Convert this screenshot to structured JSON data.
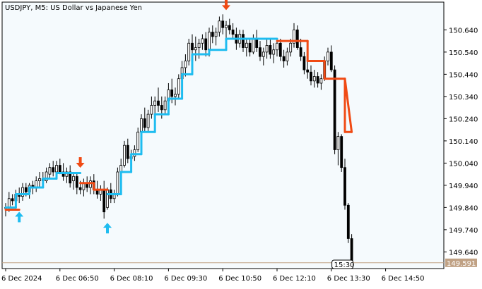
{
  "chart_data": {
    "type": "candlestick",
    "title": "USDJPY, M5:  US Dollar vs Japanese Yen",
    "y_ticks": [
      "150.640",
      "150.540",
      "150.440",
      "150.340",
      "150.240",
      "150.140",
      "150.040",
      "149.940",
      "149.840",
      "149.740",
      "149.640"
    ],
    "y_tick_values": [
      150.64,
      150.54,
      150.44,
      150.34,
      150.24,
      150.14,
      150.04,
      149.94,
      149.84,
      149.74,
      149.64
    ],
    "ylim": [
      149.565,
      150.765
    ],
    "x_ticks": [
      "6 Dec 2024",
      "6 Dec 06:50",
      "6 Dec 08:10",
      "6 Dec 09:30",
      "6 Dec 10:50",
      "6 Dec 12:10",
      "6 Dec 13:30",
      "6 Dec 14:50"
    ],
    "x_tick_bars": [
      0,
      16,
      32,
      48,
      64,
      80,
      96,
      112
    ],
    "current_price": 149.591,
    "current_price_label": "149.591",
    "current_time_label": "15:30",
    "grid": false,
    "colors": {
      "background": "#ffffff",
      "plot_background": "#f5fafd",
      "candle": "#000000",
      "trend_up": "#1ebcf0",
      "trend_down": "#f04a14",
      "price_line": "#c0a184",
      "price_label_bg": "#c0a184",
      "arrow_up": "#1ebcf0",
      "arrow_down": "#f04a14"
    },
    "candles": [
      [
        149.84,
        149.86,
        149.8,
        149.84
      ],
      [
        149.84,
        149.91,
        149.82,
        149.88
      ],
      [
        149.88,
        149.9,
        149.85,
        149.87
      ],
      [
        149.87,
        149.92,
        149.84,
        149.9
      ],
      [
        149.9,
        149.93,
        149.86,
        149.89
      ],
      [
        149.89,
        149.95,
        149.87,
        149.93
      ],
      [
        149.93,
        149.95,
        149.89,
        149.91
      ],
      [
        149.91,
        149.95,
        149.88,
        149.94
      ],
      [
        149.94,
        149.96,
        149.9,
        149.93
      ],
      [
        149.93,
        149.98,
        149.91,
        149.96
      ],
      [
        149.96,
        150.0,
        149.93,
        149.97
      ],
      [
        149.97,
        150.0,
        149.94,
        149.96
      ],
      [
        149.96,
        150.02,
        149.95,
        150.0
      ],
      [
        149.99,
        150.04,
        149.97,
        150.02
      ],
      [
        150.02,
        150.05,
        149.98,
        150.0
      ],
      [
        150.0,
        150.05,
        149.97,
        150.03
      ],
      [
        150.03,
        150.06,
        149.99,
        150.0
      ],
      [
        150.0,
        150.04,
        149.96,
        149.98
      ],
      [
        149.98,
        150.02,
        149.95,
        150.0
      ],
      [
        150.0,
        150.03,
        149.93,
        149.95
      ],
      [
        149.96,
        150.0,
        149.92,
        149.98
      ],
      [
        149.98,
        150.0,
        149.9,
        149.93
      ],
      [
        149.93,
        149.96,
        149.9,
        149.92
      ],
      [
        149.92,
        149.97,
        149.89,
        149.95
      ],
      [
        149.95,
        149.98,
        149.91,
        149.93
      ],
      [
        149.93,
        149.98,
        149.9,
        149.96
      ],
      [
        149.96,
        149.99,
        149.9,
        149.92
      ],
      [
        149.92,
        149.96,
        149.88,
        149.9
      ],
      [
        149.9,
        149.94,
        149.87,
        149.92
      ],
      [
        149.92,
        149.96,
        149.79,
        149.82
      ],
      [
        149.84,
        149.93,
        149.83,
        149.92
      ],
      [
        149.92,
        149.95,
        149.86,
        149.88
      ],
      [
        149.88,
        149.92,
        149.86,
        149.9
      ],
      [
        149.9,
        150.02,
        149.89,
        150.0
      ],
      [
        150.0,
        150.06,
        149.97,
        150.03
      ],
      [
        150.03,
        150.14,
        150.02,
        150.12
      ],
      [
        150.12,
        150.15,
        150.04,
        150.06
      ],
      [
        150.06,
        150.1,
        150.03,
        150.07
      ],
      [
        150.07,
        150.12,
        150.05,
        150.1
      ],
      [
        150.1,
        150.2,
        150.09,
        150.18
      ],
      [
        150.18,
        150.26,
        150.15,
        150.24
      ],
      [
        150.24,
        150.29,
        150.18,
        150.2
      ],
      [
        150.2,
        150.28,
        150.18,
        150.26
      ],
      [
        150.26,
        150.34,
        150.24,
        150.3
      ],
      [
        150.3,
        150.34,
        150.26,
        150.32
      ],
      [
        150.32,
        150.38,
        150.27,
        150.3
      ],
      [
        150.3,
        150.34,
        150.24,
        150.28
      ],
      [
        150.28,
        150.34,
        150.26,
        150.32
      ],
      [
        150.32,
        150.4,
        150.3,
        150.37
      ],
      [
        150.37,
        150.42,
        150.31,
        150.34
      ],
      [
        150.34,
        150.38,
        150.3,
        150.35
      ],
      [
        150.35,
        150.44,
        150.33,
        150.42
      ],
      [
        150.42,
        150.5,
        150.38,
        150.47
      ],
      [
        150.47,
        150.53,
        150.43,
        150.5
      ],
      [
        150.5,
        150.6,
        150.48,
        150.58
      ],
      [
        150.58,
        150.62,
        150.52,
        150.55
      ],
      [
        150.55,
        150.61,
        150.5,
        150.56
      ],
      [
        150.56,
        150.6,
        150.51,
        150.58
      ],
      [
        150.58,
        150.62,
        150.55,
        150.6
      ],
      [
        150.6,
        150.63,
        150.52,
        150.55
      ],
      [
        150.55,
        150.65,
        150.52,
        150.63
      ],
      [
        150.63,
        150.66,
        150.58,
        150.61
      ],
      [
        150.61,
        150.65,
        150.57,
        150.63
      ],
      [
        150.63,
        150.7,
        150.61,
        150.68
      ],
      [
        150.68,
        150.71,
        150.62,
        150.65
      ],
      [
        150.65,
        150.68,
        150.6,
        150.66
      ],
      [
        150.66,
        150.69,
        150.62,
        150.64
      ],
      [
        150.64,
        150.67,
        150.6,
        150.62
      ],
      [
        150.62,
        150.65,
        150.55,
        150.58
      ],
      [
        150.58,
        150.64,
        150.56,
        150.62
      ],
      [
        150.62,
        150.64,
        150.54,
        150.56
      ],
      [
        150.56,
        150.6,
        150.52,
        150.58
      ],
      [
        150.58,
        150.6,
        150.52,
        150.54
      ],
      [
        150.54,
        150.62,
        150.53,
        150.6
      ],
      [
        150.6,
        150.64,
        150.54,
        150.56
      ],
      [
        150.56,
        150.59,
        150.5,
        150.52
      ],
      [
        150.52,
        150.56,
        150.48,
        150.54
      ],
      [
        150.54,
        150.6,
        150.51,
        150.57
      ],
      [
        150.57,
        150.6,
        150.51,
        150.53
      ],
      [
        150.53,
        150.58,
        150.49,
        150.55
      ],
      [
        150.55,
        150.6,
        150.52,
        150.58
      ],
      [
        150.58,
        150.6,
        150.5,
        150.52
      ],
      [
        150.52,
        150.55,
        150.47,
        150.5
      ],
      [
        150.5,
        150.56,
        150.48,
        150.54
      ],
      [
        150.54,
        150.6,
        150.52,
        150.58
      ],
      [
        150.58,
        150.67,
        150.56,
        150.64
      ],
      [
        150.64,
        150.66,
        150.55,
        150.56
      ],
      [
        150.56,
        150.6,
        150.5,
        150.52
      ],
      [
        150.52,
        150.54,
        150.44,
        150.46
      ],
      [
        150.46,
        150.5,
        150.42,
        150.45
      ],
      [
        150.45,
        150.48,
        150.39,
        150.41
      ],
      [
        150.41,
        150.46,
        150.38,
        150.43
      ],
      [
        150.43,
        150.45,
        150.38,
        150.4
      ],
      [
        150.4,
        150.44,
        150.37,
        150.42
      ],
      [
        150.42,
        150.52,
        150.41,
        150.5
      ],
      [
        150.5,
        150.56,
        150.48,
        150.54
      ],
      [
        150.54,
        150.57,
        150.45,
        150.46
      ],
      [
        150.46,
        150.48,
        150.08,
        150.1
      ],
      [
        150.1,
        150.18,
        150.03,
        150.16
      ],
      [
        150.16,
        150.17,
        150.0,
        150.02
      ],
      [
        150.02,
        150.06,
        149.83,
        149.85
      ],
      [
        149.85,
        149.86,
        149.68,
        149.7
      ],
      [
        149.7,
        149.72,
        149.57,
        149.59
      ]
    ],
    "trend_line": {
      "start_bar": 0,
      "up": [
        {
          "from": 0,
          "to": 3,
          "level": 149.84
        },
        {
          "from": 3,
          "to": 7,
          "level": 149.9
        },
        {
          "from": 7,
          "to": 11,
          "level": 149.93
        },
        {
          "from": 11,
          "to": 15,
          "level": 149.97
        },
        {
          "from": 15,
          "to": 22,
          "level": 149.995
        },
        {
          "from": 30,
          "to": 34,
          "level": 149.9
        },
        {
          "from": 34,
          "to": 37,
          "level": 150.0
        },
        {
          "from": 37,
          "to": 40,
          "level": 150.08
        },
        {
          "from": 40,
          "to": 44,
          "level": 150.18
        },
        {
          "from": 44,
          "to": 48,
          "level": 150.26
        },
        {
          "from": 48,
          "to": 52,
          "level": 150.33
        },
        {
          "from": 52,
          "to": 55,
          "level": 150.44
        },
        {
          "from": 55,
          "to": 60,
          "level": 150.53
        },
        {
          "from": 60,
          "to": 65,
          "level": 150.55
        },
        {
          "from": 65,
          "to": 72,
          "level": 150.6
        },
        {
          "from": 72,
          "to": 80,
          "level": 150.6
        }
      ],
      "down": [
        {
          "from": 0,
          "to": 4,
          "level": 149.83
        },
        {
          "from": 22,
          "to": 26,
          "level": 149.95
        },
        {
          "from": 26,
          "to": 30,
          "level": 149.92
        },
        {
          "from": 80,
          "to": 89,
          "level": 150.59
        },
        {
          "from": 89,
          "to": 94,
          "level": 150.5
        },
        {
          "from": 94,
          "to": 100,
          "level": 150.42
        },
        {
          "from": 100,
          "to": 102,
          "level": 150.18
        }
      ]
    },
    "signals": [
      {
        "type": "up",
        "bar": 4
      },
      {
        "type": "down",
        "bar": 22
      },
      {
        "type": "up",
        "bar": 30
      },
      {
        "type": "down",
        "bar": 65
      }
    ]
  }
}
